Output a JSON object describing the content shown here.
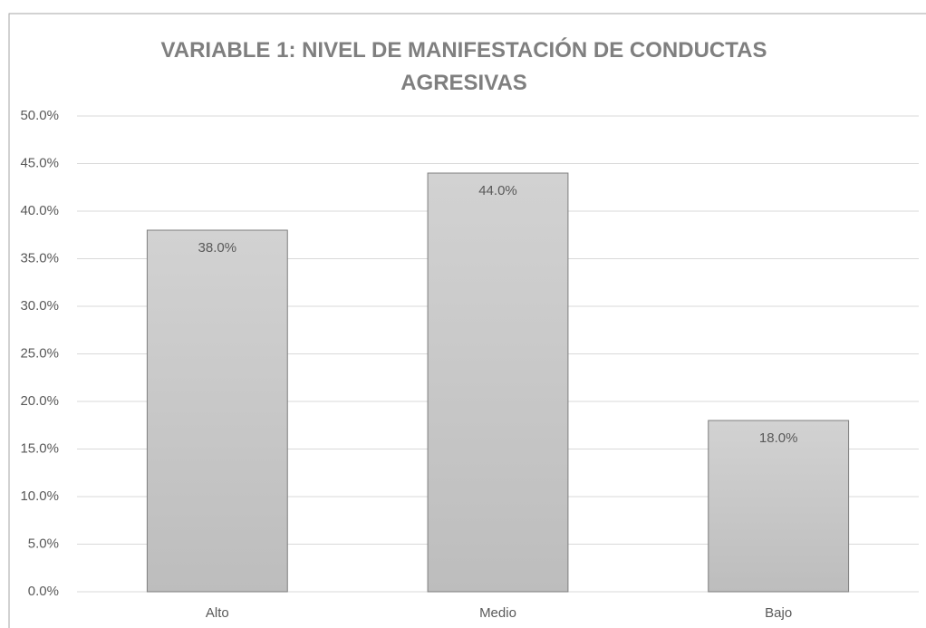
{
  "chart_data": {
    "type": "bar",
    "title": "VARIABLE 1: NIVEL DE MANIFESTACIÓN DE CONDUCTAS AGRESIVAS",
    "categories": [
      "Alto",
      "Medio",
      "Bajo"
    ],
    "values": [
      38,
      44,
      18
    ],
    "value_labels": [
      "38.0%",
      "44.0%",
      "18.0%"
    ],
    "color": "#c8c8c8",
    "ylim": [
      0,
      50
    ],
    "yticks": [
      {
        "value": 0,
        "label": "0.0%"
      },
      {
        "value": 5,
        "label": "5.0%"
      },
      {
        "value": 10,
        "label": "10.0%"
      },
      {
        "value": 15,
        "label": "15.0%"
      },
      {
        "value": 20,
        "label": "20.0%"
      },
      {
        "value": 25,
        "label": "25.0%"
      },
      {
        "value": 30,
        "label": "30.0%"
      },
      {
        "value": 35,
        "label": "35.0%"
      },
      {
        "value": 40,
        "label": "40.0%"
      },
      {
        "value": 45,
        "label": "45.0%"
      },
      {
        "value": 50,
        "label": "50.0%"
      }
    ],
    "grid": true
  }
}
